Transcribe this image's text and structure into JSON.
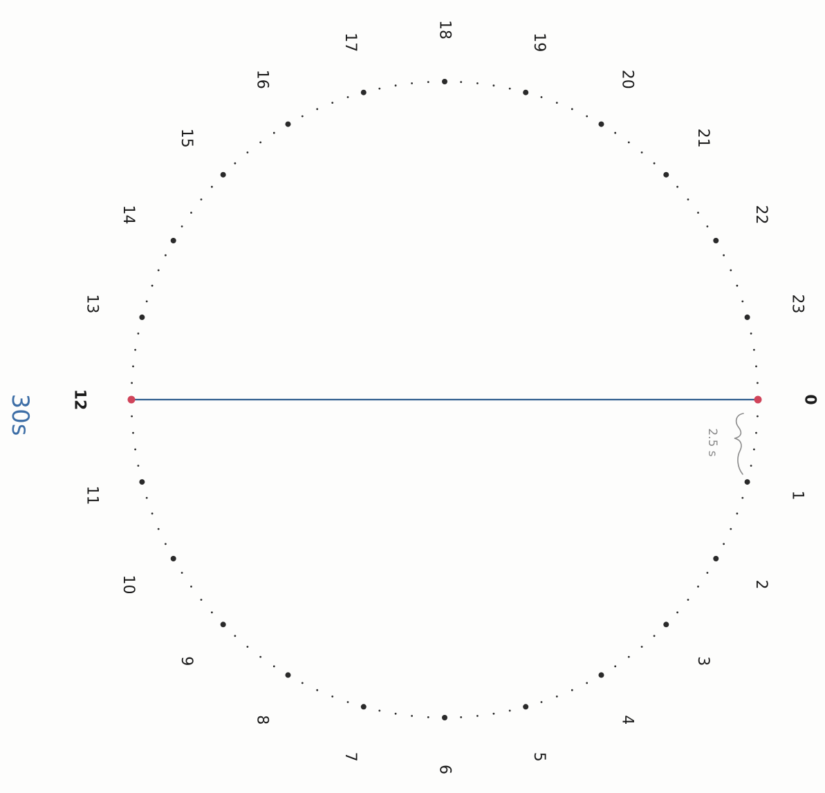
{
  "diagram": {
    "positions": [
      "0",
      "1",
      "2",
      "3",
      "4",
      "5",
      "6",
      "7",
      "8",
      "9",
      "10",
      "11",
      "12",
      "13",
      "14",
      "15",
      "16",
      "17",
      "18",
      "19",
      "20",
      "21",
      "22",
      "23"
    ],
    "minor_dots_between": 4,
    "highlighted": [
      "0",
      "12"
    ],
    "chord": {
      "from": "0",
      "to": "12"
    },
    "annotations": {
      "gap_label": "2.5 s",
      "total_label": "30s"
    },
    "colors": {
      "dot": "#2a2a2a",
      "label": "#1b1b1b",
      "highlight": "#d0445a",
      "chord": "#2f5e8e",
      "gap_ink": "#8a8a8a",
      "total_ink": "#3d6ea6"
    }
  }
}
